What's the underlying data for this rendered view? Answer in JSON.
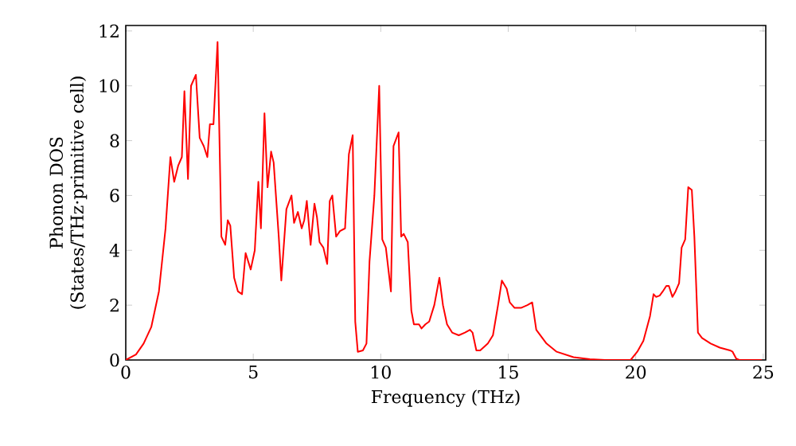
{
  "chart_data": {
    "type": "line",
    "xlabel": "Frequency (THz)",
    "ylabel": "Phonon DOS (States/THz·primitive cell)",
    "xlim": [
      0,
      25.1
    ],
    "ylim": [
      0,
      12.2
    ],
    "xticks": [
      0,
      5,
      10,
      15,
      20,
      25
    ],
    "yticks": [
      0,
      2,
      4,
      6,
      8,
      10,
      12
    ],
    "grid": false,
    "marker": "none",
    "line_style": "solid",
    "series": [
      {
        "color": "#ff0000",
        "x": [
          0,
          0.4,
          0.7,
          1.0,
          1.3,
          1.56,
          1.75,
          1.9,
          2.06,
          2.2,
          2.3,
          2.44,
          2.56,
          2.75,
          2.9,
          3.06,
          3.2,
          3.3,
          3.44,
          3.6,
          3.75,
          3.9,
          4.0,
          4.1,
          4.25,
          4.4,
          4.56,
          4.7,
          4.9,
          5.06,
          5.2,
          5.3,
          5.44,
          5.56,
          5.7,
          5.8,
          6.0,
          6.1,
          6.3,
          6.5,
          6.6,
          6.75,
          6.9,
          7.0,
          7.1,
          7.25,
          7.4,
          7.5,
          7.6,
          7.75,
          7.9,
          8.0,
          8.1,
          8.25,
          8.4,
          8.6,
          8.75,
          8.9,
          9.0,
          9.1,
          9.3,
          9.44,
          9.56,
          9.75,
          9.94,
          10.06,
          10.2,
          10.4,
          10.5,
          10.7,
          10.8,
          10.9,
          11.06,
          11.2,
          11.3,
          11.5,
          11.6,
          11.75,
          11.9,
          12.1,
          12.3,
          12.44,
          12.6,
          12.8,
          13.06,
          13.3,
          13.5,
          13.6,
          13.75,
          13.9,
          14.2,
          14.4,
          14.6,
          14.75,
          14.94,
          15.06,
          15.25,
          15.5,
          15.75,
          15.94,
          16.1,
          16.5,
          16.9,
          17.56,
          18.2,
          18.8,
          19.8,
          20.06,
          20.3,
          20.56,
          20.7,
          20.8,
          20.94,
          21.06,
          21.2,
          21.3,
          21.44,
          21.56,
          21.7,
          21.8,
          21.94,
          22.06,
          22.2,
          22.3,
          22.44,
          22.6,
          22.94,
          23.3,
          23.7,
          23.8,
          23.94,
          24.06,
          24.94
        ],
        "values": [
          0,
          0.2,
          0.6,
          1.2,
          2.5,
          4.8,
          7.4,
          6.5,
          7.1,
          7.4,
          9.8,
          6.6,
          10.0,
          10.4,
          8.1,
          7.8,
          7.4,
          8.6,
          8.6,
          11.6,
          4.5,
          4.2,
          5.1,
          4.9,
          3.0,
          2.5,
          2.4,
          3.9,
          3.3,
          4.0,
          6.5,
          4.8,
          9.0,
          6.3,
          7.6,
          7.2,
          4.5,
          2.9,
          5.5,
          6.0,
          5.0,
          5.4,
          4.8,
          5.1,
          5.8,
          4.2,
          5.7,
          5.2,
          4.3,
          4.1,
          3.5,
          5.8,
          6.0,
          4.5,
          4.7,
          4.8,
          7.5,
          8.2,
          1.4,
          0.3,
          0.35,
          0.6,
          3.6,
          6.0,
          10.0,
          4.4,
          4.1,
          2.5,
          7.8,
          8.3,
          4.5,
          4.6,
          4.3,
          1.8,
          1.3,
          1.3,
          1.15,
          1.3,
          1.4,
          2.0,
          3.0,
          2.0,
          1.3,
          1.0,
          0.9,
          1.0,
          1.1,
          1.0,
          0.35,
          0.35,
          0.6,
          0.9,
          2.0,
          2.9,
          2.6,
          2.1,
          1.9,
          1.9,
          2.0,
          2.1,
          1.1,
          0.6,
          0.3,
          0.1,
          0.03,
          0,
          0,
          0.3,
          0.7,
          1.6,
          2.4,
          2.3,
          2.35,
          2.5,
          2.7,
          2.7,
          2.3,
          2.5,
          2.8,
          4.1,
          4.4,
          6.3,
          6.2,
          4.5,
          1.0,
          0.8,
          0.6,
          0.45,
          0.35,
          0.3,
          0.05,
          0,
          0
        ]
      }
    ]
  }
}
